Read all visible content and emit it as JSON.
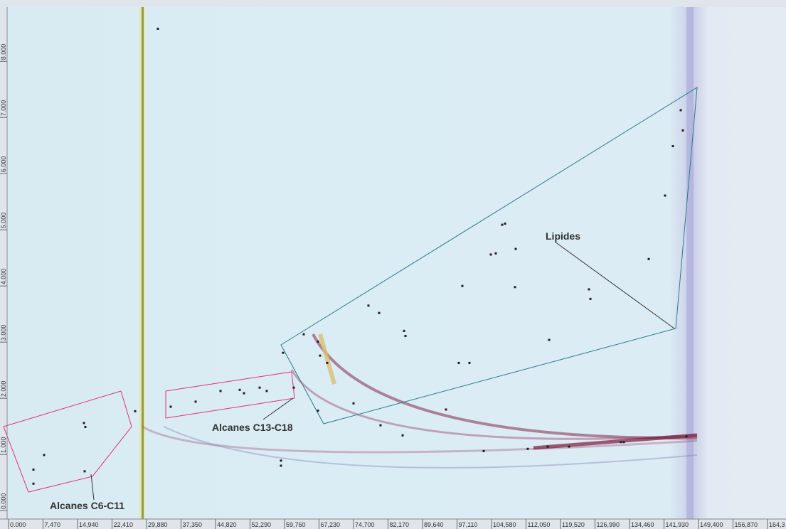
{
  "chart_data": {
    "type": "scatter",
    "xlim": [
      0,
      168.3
    ],
    "ylim": [
      -0.15,
      8.94
    ],
    "xticks": [
      {
        "value": 0,
        "label": "0.000"
      },
      {
        "value": 7.47,
        "label": "7,470"
      },
      {
        "value": 14.94,
        "label": "14,940"
      },
      {
        "value": 22.41,
        "label": "22,410"
      },
      {
        "value": 29.88,
        "label": "29,880"
      },
      {
        "value": 37.35,
        "label": "37,350"
      },
      {
        "value": 44.82,
        "label": "44,820"
      },
      {
        "value": 52.29,
        "label": "52,290"
      },
      {
        "value": 59.76,
        "label": "59,760"
      },
      {
        "value": 67.23,
        "label": "67,230"
      },
      {
        "value": 74.7,
        "label": "74,700"
      },
      {
        "value": 82.17,
        "label": "82,170"
      },
      {
        "value": 89.64,
        "label": "89,640"
      },
      {
        "value": 97.11,
        "label": "97,110"
      },
      {
        "value": 104.58,
        "label": "104,580"
      },
      {
        "value": 112.05,
        "label": "112,050"
      },
      {
        "value": 119.52,
        "label": "119,520"
      },
      {
        "value": 126.99,
        "label": "126,990"
      },
      {
        "value": 134.46,
        "label": "134,460"
      },
      {
        "value": 141.93,
        "label": "141,930"
      },
      {
        "value": 149.4,
        "label": "149,400"
      },
      {
        "value": 156.87,
        "label": "156,870"
      },
      {
        "value": 164.34,
        "label": "164,3"
      }
    ],
    "yticks": [
      {
        "value": 0,
        "label": "0.000"
      },
      {
        "value": 1,
        "label": "1.000"
      },
      {
        "value": 2,
        "label": "2.000"
      },
      {
        "value": 3,
        "label": "3.000"
      },
      {
        "value": 4,
        "label": "4.000"
      },
      {
        "value": 5,
        "label": "5.000"
      },
      {
        "value": 6,
        "label": "6.000"
      },
      {
        "value": 7,
        "label": "7.000"
      },
      {
        "value": 8,
        "label": "8.000"
      }
    ],
    "annotations": [
      "Alcanes C6-C11",
      "Alcanes C13-C18",
      "Lipides"
    ],
    "color": "#2a1a20",
    "x": [
      5.39,
      5.39,
      7.7,
      16.33,
      16.63,
      16.48,
      27.42,
      32.34,
      35.12,
      40.51,
      45.9,
      50.06,
      50.98,
      54.37,
      55.91,
      61.76,
      58.99,
      58.99,
      59.45,
      63.92,
      67.0,
      67.46,
      69.0,
      67.0,
      74.7,
      80.55,
      85.33,
      77.93,
      80.24,
      85.64,
      85.94,
      94.72,
      98.26,
      104.43,
      106.89,
      105.5,
      107.51,
      109.82,
      117.06,
      125.68,
      125.99,
      138.62,
      142.16,
      143.85,
      145.55,
      146.01,
      146.78,
      102.89,
      112.43,
      116.75,
      121.37,
      132.61,
      133.23,
      109.66,
      97.49,
      99.8
    ],
    "y": [
      0.73,
      0.48,
      0.99,
      1.56,
      1.49,
      0.7,
      1.77,
      8.58,
      1.85,
      1.94,
      2.13,
      2.15,
      2.09,
      2.19,
      2.13,
      2.19,
      0.89,
      0.8,
      2.81,
      3.14,
      3.01,
      2.76,
      2.63,
      1.78,
      1.91,
      1.52,
      1.34,
      3.65,
      3.52,
      3.2,
      3.11,
      1.8,
      4.0,
      4.56,
      5.09,
      4.58,
      5.11,
      4.66,
      3.04,
      3.94,
      3.77,
      4.48,
      5.61,
      6.49,
      7.13,
      6.77,
      1.32,
      1.06,
      1.1,
      1.14,
      1.14,
      1.22,
      1.22,
      3.98,
      2.63,
      2.63
    ]
  }
}
